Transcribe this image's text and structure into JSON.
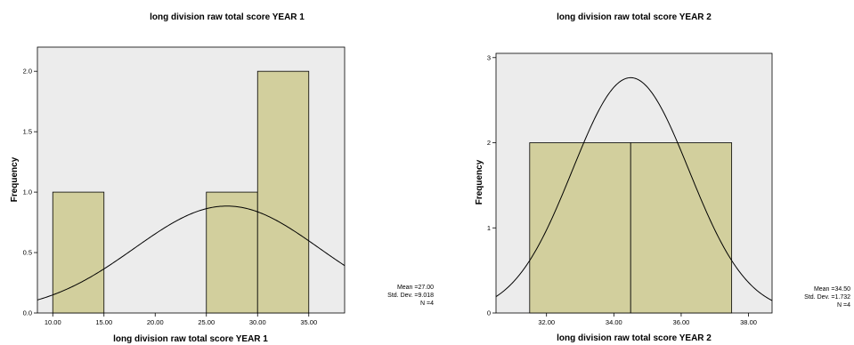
{
  "chart_data": [
    {
      "type": "bar",
      "subtype": "histogram-with-normal-curve",
      "title": "long division raw total score YEAR 1",
      "xlabel": "long division raw total score YEAR 1",
      "ylabel": "Frequency",
      "xlim": [
        8.5,
        38.5
      ],
      "ylim": [
        0,
        2.2
      ],
      "x_ticks": [
        10,
        15,
        20,
        25,
        30,
        35
      ],
      "x_tick_labels": [
        "10.00",
        "15.00",
        "20.00",
        "25.00",
        "30.00",
        "35.00"
      ],
      "y_ticks": [
        0,
        0.5,
        1,
        1.5,
        2
      ],
      "y_tick_labels": [
        "0.0",
        "0.5",
        "1.0",
        "1.5",
        "2.0"
      ],
      "bins": [
        {
          "start": 10,
          "end": 15,
          "count": 1
        },
        {
          "start": 25,
          "end": 30,
          "count": 1
        },
        {
          "start": 30,
          "end": 35,
          "count": 2
        }
      ],
      "normal_curve": {
        "mean": 27.0,
        "sd": 9.018,
        "n": 4,
        "bin_width": 5
      },
      "stats": {
        "mean": "Mean =27.00",
        "sd": "Std. Dev. =9.018",
        "n": "N =4"
      },
      "grid": false,
      "colors": {
        "bar": "#d2cf9d",
        "background": "#ececec"
      }
    },
    {
      "type": "bar",
      "subtype": "histogram-with-normal-curve",
      "title": "long division raw total score YEAR 2",
      "xlabel": "long division raw total score YEAR 2",
      "ylabel": "Frequency",
      "xlim": [
        30.5,
        38.7
      ],
      "ylim": [
        0,
        3.05
      ],
      "x_ticks": [
        32,
        34,
        36,
        38
      ],
      "x_tick_labels": [
        "32.00",
        "34.00",
        "36.00",
        "38.00"
      ],
      "y_ticks": [
        0,
        1,
        2,
        3
      ],
      "y_tick_labels": [
        "0",
        "1",
        "2",
        "3"
      ],
      "bins": [
        {
          "start": 31.5,
          "end": 34.5,
          "count": 2
        },
        {
          "start": 34.5,
          "end": 37.5,
          "count": 2
        }
      ],
      "normal_curve": {
        "mean": 34.5,
        "sd": 1.732,
        "n": 4,
        "bin_width": 3
      },
      "stats": {
        "mean": "Mean =34.50",
        "sd": "Std. Dev. =1.732",
        "n": "N =4"
      },
      "grid": false,
      "colors": {
        "bar": "#d2cf9d",
        "background": "#ececec"
      }
    }
  ]
}
